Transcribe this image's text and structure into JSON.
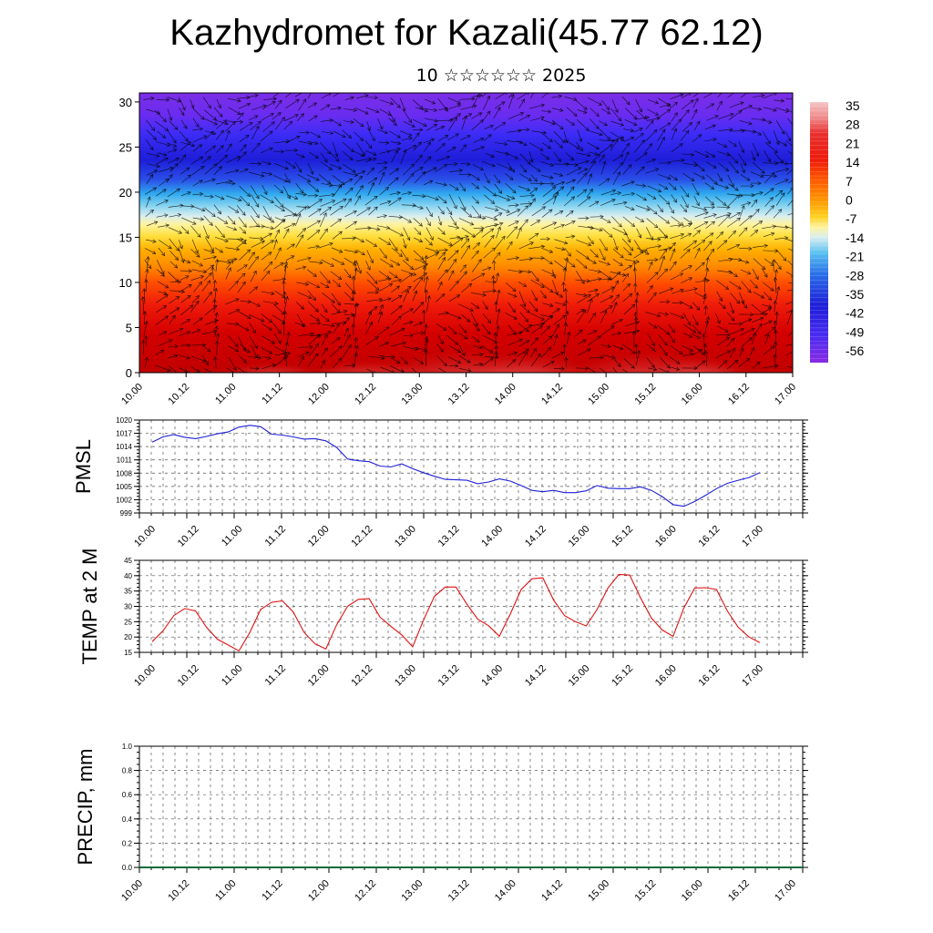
{
  "header": {
    "title": "Kazhydromet for Kazali(45.77 62.12)",
    "subtitle": "10 ☆☆☆☆☆☆ 2025"
  },
  "colors": {
    "pmsl_line": "#1f1fd6",
    "temp_line": "#e01010",
    "vectors": "#000000",
    "colorbar_top": "#f2b6b6",
    "colorbar_bottom": "#8a2be2"
  },
  "chart_data": [
    {
      "type": "heatmap",
      "title": "",
      "xlabel": "",
      "ylabel": "",
      "x_ticks": [
        "10.00",
        "10.12",
        "11.00",
        "11.12",
        "12.00",
        "12.12",
        "13.00",
        "13.12",
        "14.00",
        "14.12",
        "15.00",
        "15.12",
        "16.00",
        "16.12",
        "17.00"
      ],
      "y_ticks": [
        0,
        5,
        10,
        15,
        20,
        25,
        30
      ],
      "ylim": [
        0,
        31
      ],
      "vectors": "wind vectors overlaid",
      "colorbar_labels": [
        "35",
        "28",
        "21",
        "14",
        "7",
        "0",
        "-7",
        "-14",
        "-21",
        "-28",
        "-35",
        "-42",
        "-49",
        "-56"
      ],
      "colorbar_range": [
        -60,
        38
      ]
    },
    {
      "type": "line",
      "ylabel": "PMSL",
      "y_ticks": [
        999,
        1002,
        1005,
        1008,
        1011,
        1014,
        1017,
        1020
      ],
      "ylim": [
        999,
        1020
      ],
      "x_ticks": [
        "10.00",
        "10.12",
        "11.00",
        "11.12",
        "12.00",
        "12.12",
        "13.00",
        "13.12",
        "14.00",
        "14.12",
        "15.00",
        "15.12",
        "16.00",
        "16.12",
        "17.00"
      ],
      "series": [
        {
          "values": [
            1015,
            1016.2,
            1016.7,
            1016.1,
            1015.8,
            1016.3,
            1016.9,
            1017.3,
            1018.4,
            1018.8,
            1018.5,
            1016.8,
            1016.6,
            1016.2,
            1015.7,
            1015.8,
            1015.3,
            1013.8,
            1011.2,
            1010.8,
            1010.6,
            1009.6,
            1009.4,
            1010.1,
            1009.0,
            1008.1,
            1007.3,
            1006.6,
            1006.5,
            1006.4,
            1005.6,
            1006.0,
            1006.7,
            1006.2,
            1005.2,
            1004.1,
            1003.8,
            1004.1,
            1003.6,
            1003.6,
            1004.0,
            1005.2,
            1004.6,
            1004.5,
            1004.5,
            1004.9,
            1004.1,
            1002.7,
            1000.9,
            1000.5,
            1001.6,
            1003.0,
            1004.5,
            1005.7,
            1006.4,
            1007.0,
            1008.1
          ]
        }
      ]
    },
    {
      "type": "line",
      "ylabel": "TEMP at 2 M",
      "y_ticks": [
        15,
        20,
        25,
        30,
        35,
        40,
        45
      ],
      "ylim": [
        15,
        45
      ],
      "x_ticks": [
        "10.00",
        "10.12",
        "11.00",
        "11.12",
        "12.00",
        "12.12",
        "13.00",
        "13.12",
        "14.00",
        "14.12",
        "15.00",
        "15.12",
        "16.00",
        "16.12",
        "17.00"
      ],
      "series": [
        {
          "values": [
            18.5,
            22.0,
            27.0,
            29.3,
            28.5,
            23.2,
            19.3,
            17.4,
            15.5,
            21.5,
            29.0,
            31.3,
            31.8,
            28.2,
            21.5,
            17.8,
            16.1,
            24.0,
            30.0,
            32.3,
            32.5,
            26.5,
            23.5,
            20.7,
            16.8,
            25.5,
            33.2,
            36.3,
            36.3,
            30.7,
            25.8,
            23.7,
            20.3,
            27.5,
            35.5,
            39.0,
            39.3,
            32.0,
            27.0,
            25.0,
            23.6,
            29.0,
            36.0,
            40.4,
            40.2,
            32.8,
            26.2,
            22.3,
            20.2,
            29.5,
            36.0,
            36.1,
            35.5,
            28.5,
            23.2,
            20.0,
            18.2
          ]
        }
      ]
    },
    {
      "type": "bar",
      "ylabel": "PRECIP, mm",
      "y_ticks": [
        "0.0",
        "0.2",
        "0.4",
        "0.6",
        "0.8",
        "1.0"
      ],
      "ylim": [
        0,
        1
      ],
      "x_ticks": [
        "10.00",
        "10.12",
        "11.00",
        "11.12",
        "12.00",
        "12.12",
        "13.00",
        "13.12",
        "14.00",
        "14.12",
        "15.00",
        "15.12",
        "16.00",
        "16.12",
        "17.00"
      ],
      "values": []
    }
  ]
}
